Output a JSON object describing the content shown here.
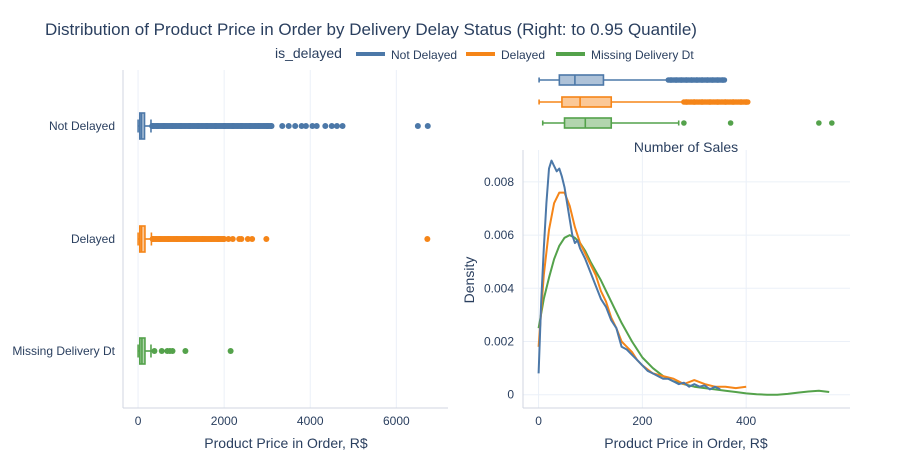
{
  "title": "Distribution of Product Price in Order by Delivery Delay Status (Right: to 0.95 Quantile)",
  "legend": {
    "title": "is_delayed",
    "position": "top-center",
    "items": [
      {
        "label": "Not Delayed",
        "color": "#4c78a8"
      },
      {
        "label": "Delayed",
        "color": "#f58518"
      },
      {
        "label": "Missing Delivery Dt",
        "color": "#54a24b"
      }
    ]
  },
  "chart_data": [
    {
      "type": "box",
      "orientation": "horizontal",
      "grid": true,
      "xlabel": "Product Price in Order, R$",
      "ylabel": "",
      "xlim": [
        -350,
        7200
      ],
      "xticks": [
        0,
        2000,
        4000,
        6000
      ],
      "xtick_labels": [
        "0",
        "2000",
        "4000",
        "6000"
      ],
      "series": [
        {
          "name": "Not Delayed",
          "color": "#4c78a8",
          "stats": {
            "min": 1,
            "q1": 40,
            "median": 80,
            "q3": 150,
            "upper_fence": 300
          },
          "outliers": [
            330,
            450,
            600,
            800,
            1000,
            1200,
            1400,
            1600,
            1800,
            2000,
            2200,
            2400,
            2600,
            2800,
            3000,
            3100,
            3350,
            3500,
            3650,
            3800,
            3900,
            4050,
            4150,
            4350,
            4500,
            4620,
            4750,
            6500,
            6730
          ]
        },
        {
          "name": "Delayed",
          "color": "#f58518",
          "stats": {
            "min": 1,
            "q1": 40,
            "median": 80,
            "q3": 160,
            "upper_fence": 310
          },
          "outliers": [
            340,
            500,
            700,
            900,
            1100,
            1300,
            1500,
            1700,
            1850,
            2000,
            2100,
            2200,
            2350,
            2400,
            2550,
            2650,
            2980,
            6720
          ]
        },
        {
          "name": "Missing Delivery Dt",
          "color": "#54a24b",
          "stats": {
            "min": 1,
            "q1": 40,
            "median": 90,
            "q3": 160,
            "upper_fence": 300
          },
          "outliers": [
            380,
            550,
            680,
            740,
            800,
            1100,
            2150
          ]
        }
      ]
    },
    {
      "type": "box",
      "orientation": "horizontal",
      "grid": false,
      "xlim": [
        -30,
        600
      ],
      "series": [
        {
          "name": "Not Delayed",
          "color": "#4c78a8",
          "stats": {
            "min": 1,
            "q1": 40,
            "median": 70,
            "q3": 125,
            "upper_fence": 250
          },
          "outliers": [
            255,
            265,
            275,
            285,
            295,
            305,
            315,
            325,
            335,
            345,
            355
          ]
        },
        {
          "name": "Delayed",
          "color": "#f58518",
          "stats": {
            "min": 1,
            "q1": 45,
            "median": 80,
            "q3": 140,
            "upper_fence": 280
          },
          "outliers": [
            285,
            300,
            315,
            330,
            345,
            360,
            375,
            390,
            400
          ]
        },
        {
          "name": "Missing Delivery Dt",
          "color": "#54a24b",
          "stats": {
            "min": 8,
            "q1": 50,
            "median": 90,
            "q3": 140,
            "upper_fence": 270
          },
          "outliers": [
            280,
            370,
            540,
            565
          ]
        }
      ]
    },
    {
      "type": "line",
      "title": "Number of Sales",
      "xlabel": "Product Price in Order, R$",
      "ylabel": "Density",
      "xlim": [
        -30,
        600
      ],
      "ylim": [
        -0.0005,
        0.0092
      ],
      "xticks": [
        0,
        200,
        400
      ],
      "yticks": [
        0,
        0.002,
        0.004,
        0.006,
        0.008
      ],
      "ytick_labels": [
        "0",
        "0.002",
        "0.004",
        "0.006",
        "0.008"
      ],
      "grid": true,
      "series": [
        {
          "name": "Not Delayed",
          "color": "#4c78a8",
          "x": [
            0,
            5,
            10,
            15,
            20,
            25,
            30,
            35,
            40,
            45,
            50,
            55,
            60,
            65,
            70,
            75,
            80,
            90,
            100,
            110,
            120,
            130,
            140,
            150,
            160,
            170,
            180,
            190,
            200,
            210,
            220,
            230,
            240,
            250,
            260,
            270,
            280,
            290,
            300,
            310,
            320,
            330,
            340,
            350
          ],
          "y": [
            0.0008,
            0.0035,
            0.0055,
            0.0072,
            0.0085,
            0.0088,
            0.0086,
            0.0084,
            0.0085,
            0.0082,
            0.0078,
            0.0072,
            0.0066,
            0.006,
            0.0057,
            0.0058,
            0.0055,
            0.0051,
            0.0046,
            0.0041,
            0.0036,
            0.0033,
            0.0028,
            0.0025,
            0.0018,
            0.0017,
            0.0015,
            0.0013,
            0.0011,
            0.0009,
            0.0008,
            0.0007,
            0.0006,
            0.0006,
            0.0005,
            0.0004,
            0.00045,
            0.0003,
            0.0004,
            0.0003,
            0.00035,
            0.0002,
            0.0003,
            0.0002
          ]
        },
        {
          "name": "Delayed",
          "color": "#f58518",
          "x": [
            0,
            10,
            20,
            30,
            40,
            50,
            60,
            70,
            80,
            90,
            100,
            110,
            120,
            130,
            140,
            150,
            160,
            170,
            180,
            190,
            200,
            220,
            240,
            260,
            280,
            300,
            320,
            340,
            360,
            380,
            400
          ],
          "y": [
            0.0018,
            0.0045,
            0.0062,
            0.0072,
            0.0076,
            0.0076,
            0.0071,
            0.0063,
            0.0057,
            0.0053,
            0.0049,
            0.0045,
            0.0039,
            0.0035,
            0.0029,
            0.0025,
            0.002,
            0.0018,
            0.0016,
            0.0013,
            0.0011,
            0.0008,
            0.0007,
            0.0006,
            0.0004,
            0.00055,
            0.0004,
            0.0003,
            0.0003,
            0.00025,
            0.0003
          ]
        },
        {
          "name": "Missing Delivery Dt",
          "color": "#54a24b",
          "x": [
            0,
            10,
            20,
            30,
            40,
            50,
            60,
            70,
            80,
            90,
            100,
            120,
            140,
            160,
            180,
            200,
            220,
            240,
            260,
            280,
            300,
            320,
            340,
            360,
            380,
            400,
            420,
            440,
            460,
            480,
            500,
            520,
            540,
            560
          ],
          "y": [
            0.0025,
            0.0036,
            0.0044,
            0.0051,
            0.0056,
            0.0059,
            0.006,
            0.0059,
            0.0057,
            0.0054,
            0.005,
            0.0043,
            0.0035,
            0.0027,
            0.002,
            0.0014,
            0.001,
            0.0007,
            0.0005,
            0.0004,
            0.0003,
            0.00025,
            0.0002,
            0.00015,
            0.0001,
            5e-05,
            2e-05,
            0.0,
            0.0,
            3e-05,
            8e-05,
            0.00012,
            0.00015,
            0.0001
          ]
        }
      ]
    }
  ]
}
